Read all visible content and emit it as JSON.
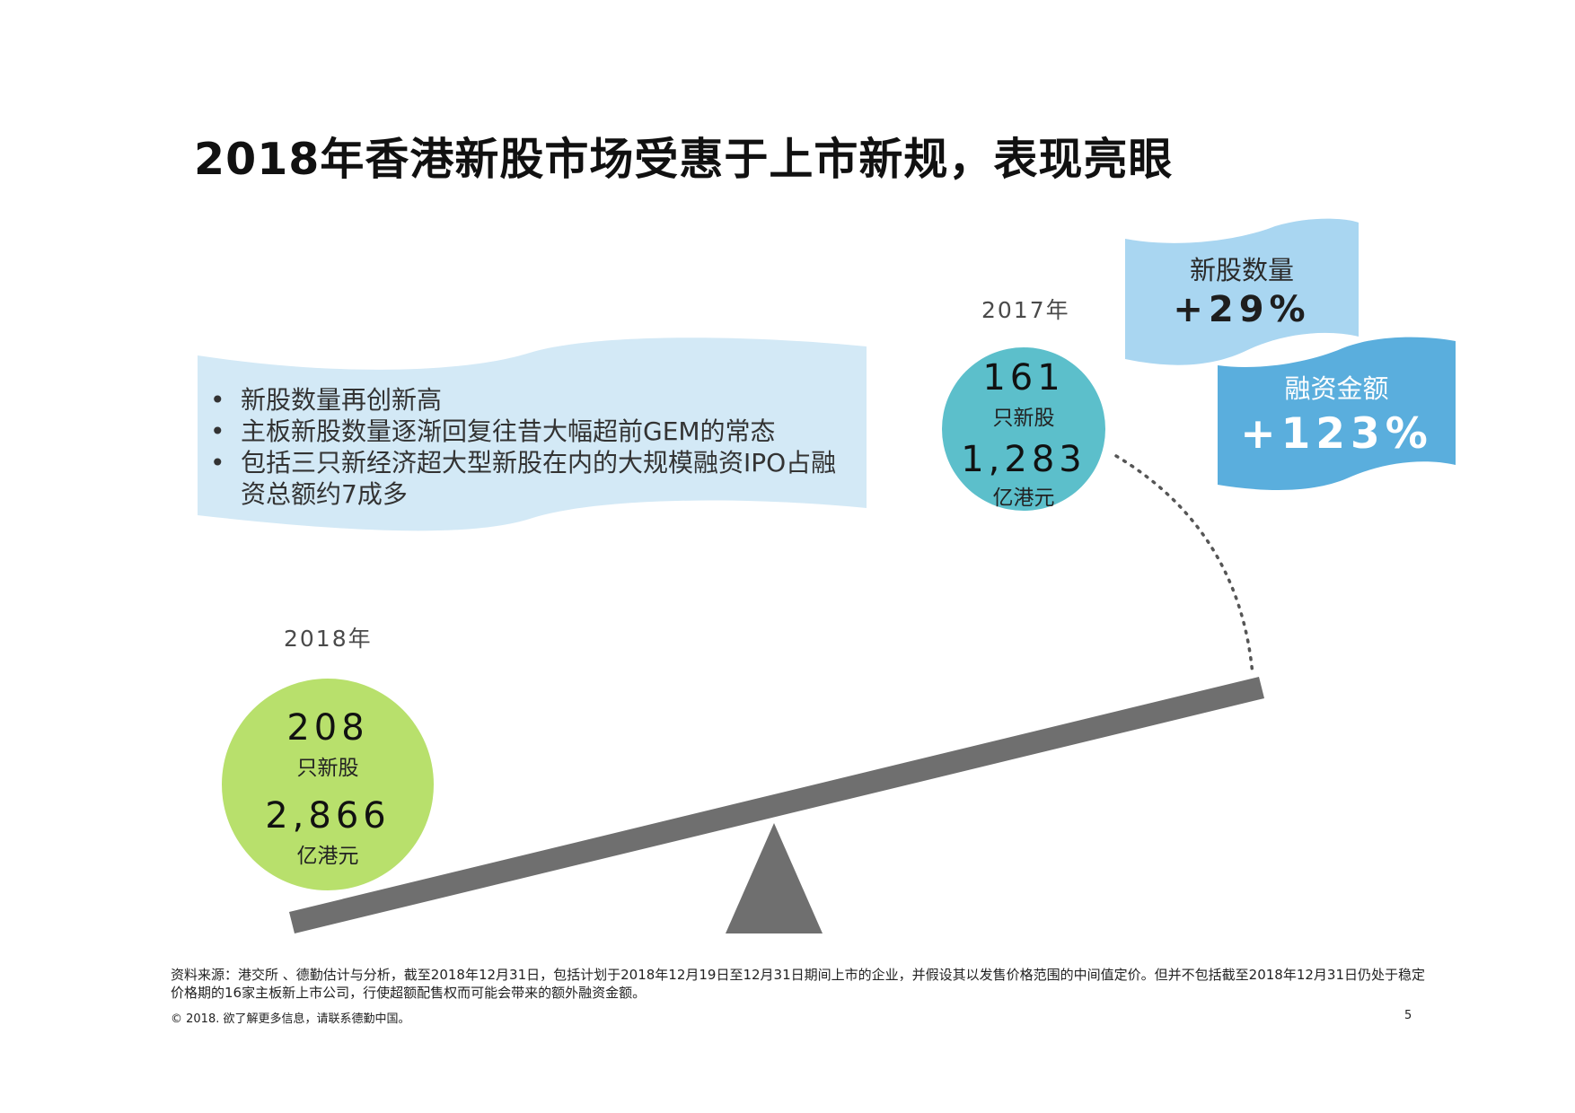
{
  "title": "2018年香港新股市场受惠于上市新规，表现亮眼",
  "bullets": [
    "新股数量再创新高",
    "主板新股数量逐渐回复往昔大幅超前GEM的常态",
    "包括三只新经济超大型新股在内的大规模融资IPO占融资总额约7成多"
  ],
  "year_2017": {
    "label": "2017年",
    "ipo_count": "161",
    "ipo_unit": "只新股",
    "amount": "1,283",
    "amount_unit": "亿港元",
    "color": "#5cbfcb"
  },
  "year_2018": {
    "label": "2018年",
    "ipo_count": "208",
    "ipo_unit": "只新股",
    "amount": "2,866",
    "amount_unit": "亿港元",
    "color": "#b8e06c"
  },
  "growth": [
    {
      "label": "新股数量",
      "value": "+29%",
      "color": "#9fd0ee"
    },
    {
      "label": "融资金额",
      "value": "+123%",
      "color": "#5aaedd"
    }
  ],
  "footnote": "资料来源：港交所 、德勤估计与分析，截至2018年12月31日，包括计划于2018年12月19日至12月31日期间上市的企业，并假设其以发售价格范围的中间值定价。但并不包括截至2018年12月31日仍处于稳定价格期的16家主板新上市公司，行使超额配售权而可能会带来的额外融资金额。",
  "copyright": "© 2018. 欲了解更多信息，请联系德勤中国。",
  "page_number": "5",
  "colors": {
    "banner_light": "#d3e9f6",
    "seesaw": "#6f6f6f",
    "dotted_arc": "#555555"
  }
}
